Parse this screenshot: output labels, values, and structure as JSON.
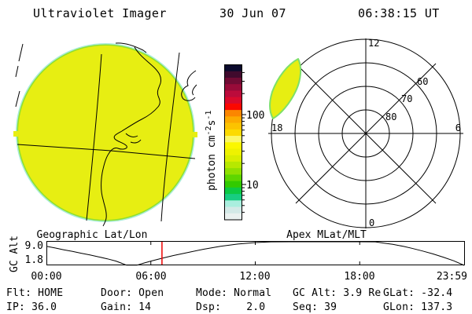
{
  "header": {
    "app_title": "Ultraviolet Imager",
    "date": "30 Jun 07",
    "time": "06:38:15 UT"
  },
  "colors": {
    "disc_fill": "#e7ee12",
    "disc_fringe_green": "#8fdf2e",
    "disc_fringe_cyan": "#a9ecd9",
    "emission_patch_fill": "#e7ee12",
    "emission_patch_edge": "#7de069",
    "cursor_red": "#ee0000"
  },
  "left_panel": {
    "caption": "Geographic Lat/Lon"
  },
  "polar_panel": {
    "caption": "Apex MLat/MLT",
    "hour_top": "12",
    "hour_left": "18",
    "hour_right": "6",
    "hour_bottom": "0",
    "lat_labels": [
      "60",
      "70",
      "80"
    ]
  },
  "colorbar": {
    "unit_parts": [
      "photon cm",
      "-2",
      "s",
      "-1"
    ],
    "tick_labels": [
      "100",
      "10"
    ],
    "tick_values": [
      100,
      10
    ],
    "scale": "log",
    "colors": [
      "#0b0b2d",
      "#400a2d",
      "#700b34",
      "#980b39",
      "#bc0b3b",
      "#da0a2c",
      "#fb0800",
      "#fb8600",
      "#fcab00",
      "#fcc300",
      "#fcda00",
      "#fbf767",
      "#fbf700",
      "#eef200",
      "#d9ee00",
      "#b7e800",
      "#90e000",
      "#5ed600",
      "#32ca00",
      "#0cc944",
      "#17cd82",
      "#a9eede",
      "#d3e9e7",
      "#eaf1f0"
    ]
  },
  "bottom_plot": {
    "ylabel": "GC Alt",
    "ytick_top": "9.0",
    "ytick_bottom": "1.8",
    "xtick_labels": [
      "00:00",
      "06:00",
      "12:00",
      "18:00",
      "23:59"
    ]
  },
  "status_rows": [
    [
      "Flt: HOME",
      "Door: Open",
      "Mode: Normal",
      "GC Alt: 3.9 Re",
      "GLat: -32.4"
    ],
    [
      "IP: 36.0",
      "Gain: 14",
      "Dsp:    2.0",
      "Seq: 39",
      "GLon: 137.3"
    ]
  ],
  "chart_data": [
    {
      "type": "heatmap",
      "panel": "left-disc",
      "title": "Geographic Lat/Lon",
      "description": "Full-disc UV image, nearly uniform emission (yellow, ~20-60 photon cm-2 s-1) with coastline and lat/lon grid overlay",
      "colorbar": {
        "label": "photon cm-2 s-1",
        "scale": "log",
        "labeled_ticks": [
          10,
          100
        ],
        "range_approx": [
          3,
          500
        ]
      }
    },
    {
      "type": "heatmap",
      "panel": "polar-grid",
      "title": "Apex MLat/MLT",
      "mlt_axis_labels": [
        12,
        18,
        6,
        0
      ],
      "mlat_rings": [
        80,
        70,
        60,
        50
      ],
      "emission_patch": {
        "mlat_range_approx": [
          50,
          63
        ],
        "mlt_range_approx": [
          14,
          16
        ],
        "value_color": "#e7ee12"
      }
    },
    {
      "type": "line",
      "panel": "bottom",
      "title": "GC Alt",
      "ylabel": "GC Alt (Re)",
      "ylim": [
        1.8,
        9.0
      ],
      "xlim_hours": [
        0,
        24
      ],
      "yticks": [
        9.0,
        1.8
      ],
      "xticks": [
        "00:00",
        "06:00",
        "12:00",
        "18:00",
        "23:59"
      ],
      "cursor_hours": 6.6375,
      "points_hours_re": [
        [
          0,
          7.6
        ],
        [
          0.5,
          7.1
        ],
        [
          1,
          6.55
        ],
        [
          1.5,
          6.05
        ],
        [
          2,
          5.5
        ],
        [
          2.5,
          5.0
        ],
        [
          3,
          4.4
        ],
        [
          3.5,
          3.8
        ],
        [
          4,
          3.1
        ],
        [
          4.3,
          2.5
        ],
        [
          4.6,
          1.85
        ],
        [
          5.2,
          1.85
        ],
        [
          5.6,
          2.5
        ],
        [
          6,
          3.1
        ],
        [
          6.64,
          3.95
        ],
        [
          7.3,
          4.8
        ],
        [
          8,
          5.6
        ],
        [
          9,
          6.7
        ],
        [
          10,
          7.6
        ],
        [
          11,
          8.3
        ],
        [
          12,
          8.75
        ],
        [
          12.9,
          8.97
        ],
        [
          14,
          9.0
        ],
        [
          16,
          9.0
        ],
        [
          18,
          9.0
        ],
        [
          18.9,
          8.97
        ],
        [
          19.4,
          8.6
        ],
        [
          19.9,
          8.2
        ],
        [
          20.5,
          7.6
        ],
        [
          21,
          7.0
        ],
        [
          21.6,
          6.2
        ],
        [
          22.2,
          5.3
        ],
        [
          22.8,
          4.3
        ],
        [
          23.4,
          3.2
        ],
        [
          24,
          1.8
        ]
      ]
    }
  ]
}
